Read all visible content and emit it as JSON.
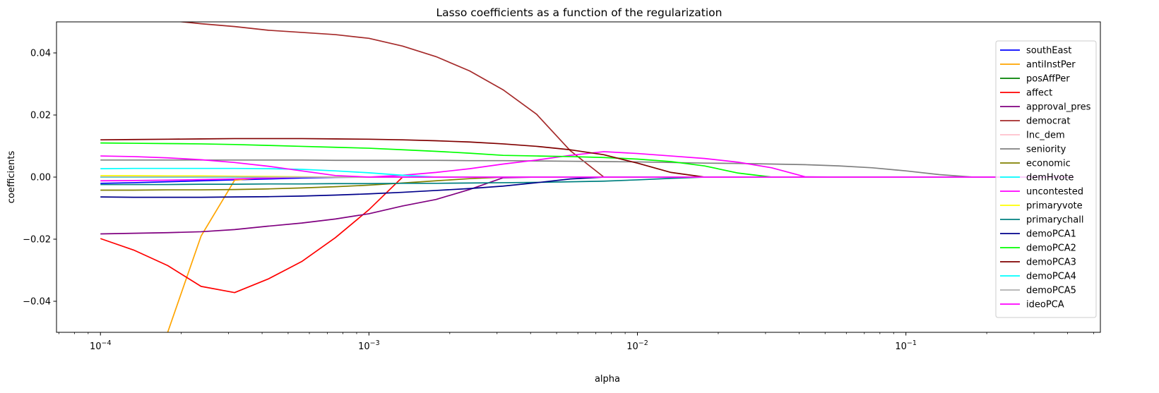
{
  "chart_data": {
    "type": "line",
    "title": "Lasso coefficients as a function of the regularization",
    "xlabel": "alpha",
    "ylabel": "coefficients",
    "xscale": "log",
    "xlim": [
      6.86e-05,
      0.53
    ],
    "ylim": [
      -0.05,
      0.05
    ],
    "xticks": [
      {
        "value": 0.0001,
        "base": "10",
        "exp": "−4"
      },
      {
        "value": 0.001,
        "base": "10",
        "exp": "−3"
      },
      {
        "value": 0.01,
        "base": "10",
        "exp": "−2"
      },
      {
        "value": 0.1,
        "base": "10",
        "exp": "−1"
      }
    ],
    "yticks": [
      {
        "value": -0.04,
        "label": "−0.04"
      },
      {
        "value": -0.02,
        "label": "−0.02"
      },
      {
        "value": 0.0,
        "label": "0.00"
      },
      {
        "value": 0.02,
        "label": "0.02"
      },
      {
        "value": 0.04,
        "label": "0.04"
      }
    ],
    "grid": false,
    "legend_position": "right",
    "x": [
      0.0001,
      0.000133,
      0.000178,
      0.000237,
      0.000316,
      0.000422,
      0.000562,
      0.00075,
      0.001,
      0.001334,
      0.001778,
      0.002371,
      0.003162,
      0.004217,
      0.005623,
      0.007499,
      0.01,
      0.013335,
      0.017783,
      0.023714,
      0.031623,
      0.04217,
      0.056234,
      0.074989,
      0.1,
      0.133352,
      0.177828,
      0.237137,
      0.316228,
      0.421697
    ],
    "series": [
      {
        "name": "southEast",
        "color": "#0000ff",
        "values": [
          -0.002,
          -0.0018,
          -0.0015,
          -0.0012,
          -0.0009,
          -0.0006,
          -0.0003,
          -0.0001,
          0,
          0,
          0,
          0,
          0,
          0,
          0,
          0,
          0,
          0,
          0,
          0,
          0,
          0,
          0,
          0,
          0,
          0,
          0,
          0,
          0,
          0
        ]
      },
      {
        "name": "antiInstPer",
        "color": "#ffa500",
        "values": [
          null,
          null,
          -0.05,
          -0.019,
          -0.001,
          0,
          0,
          0,
          0,
          0,
          0,
          0,
          0,
          0,
          0,
          0,
          0,
          0,
          0,
          0,
          0,
          0,
          0,
          0,
          0,
          0,
          0,
          0,
          0,
          0
        ]
      },
      {
        "name": "posAffPer",
        "color": "#008000",
        "values": [
          0,
          0,
          0,
          0,
          0,
          0,
          0,
          0,
          0,
          0,
          0,
          0,
          0,
          0,
          0,
          0,
          0,
          0,
          0,
          0,
          0,
          0,
          0,
          0,
          0,
          0,
          0,
          0,
          0,
          0
        ]
      },
      {
        "name": "affect",
        "color": "#ff0000",
        "values": [
          -0.0198,
          -0.0235,
          -0.0285,
          -0.0352,
          -0.0372,
          -0.0328,
          -0.0272,
          -0.0195,
          -0.0105,
          0,
          0,
          0,
          0,
          0,
          0,
          0,
          0,
          0,
          0,
          0,
          0,
          0,
          0,
          0,
          0,
          0,
          0,
          0,
          0,
          0
        ]
      },
      {
        "name": "approval_pres",
        "color": "#800080",
        "values": [
          -0.0183,
          -0.0181,
          -0.0179,
          -0.0176,
          -0.0169,
          -0.0158,
          -0.0148,
          -0.0135,
          -0.0118,
          -0.0093,
          -0.0072,
          -0.004,
          -0.0002,
          0,
          0,
          0,
          0,
          0,
          0,
          0,
          0,
          0,
          0,
          0,
          0,
          0,
          0,
          0,
          0,
          0
        ]
      },
      {
        "name": "democrat",
        "color": "#a52a2a",
        "values": [
          0.052,
          0.0515,
          0.0505,
          0.0494,
          0.0485,
          0.0473,
          0.0466,
          0.0459,
          0.0447,
          0.0422,
          0.0388,
          0.0342,
          0.0281,
          0.0202,
          0.0085,
          0,
          0,
          0,
          0,
          0,
          0,
          0,
          0,
          0,
          0,
          0,
          0,
          0,
          0,
          0
        ]
      },
      {
        "name": "Inc_dem",
        "color": "#ffc0cb",
        "values": [
          0,
          0,
          0,
          0,
          0,
          0,
          0,
          0,
          0,
          0,
          0,
          0,
          0,
          0,
          0,
          0,
          0,
          0,
          0,
          0,
          0,
          0,
          0,
          0,
          0,
          0,
          0,
          0,
          0,
          0
        ]
      },
      {
        "name": "seniority",
        "color": "#808080",
        "values": [
          0.0055,
          0.0055,
          0.0055,
          0.0055,
          0.0055,
          0.0055,
          0.0055,
          0.0054,
          0.0054,
          0.0054,
          0.0054,
          0.0053,
          0.0053,
          0.0052,
          0.0051,
          0.005,
          0.0049,
          0.0047,
          0.0045,
          0.0044,
          0.0042,
          0.004,
          0.0036,
          0.003,
          0.002,
          0.0008,
          0,
          0,
          0,
          0
        ]
      },
      {
        "name": "economic",
        "color": "#808000",
        "values": [
          -0.0042,
          -0.0042,
          -0.0041,
          -0.0041,
          -0.004,
          -0.0038,
          -0.0035,
          -0.0031,
          -0.0026,
          -0.0019,
          -0.0012,
          -0.0005,
          0,
          0,
          0,
          0,
          0,
          0,
          0,
          0,
          0,
          0,
          0,
          0,
          0,
          0,
          0,
          0,
          0,
          0
        ]
      },
      {
        "name": "demHvote",
        "color": "#00ffff",
        "values": [
          0,
          0,
          0,
          0,
          0,
          0,
          0,
          0,
          0,
          0,
          0,
          0,
          0,
          0,
          0,
          0,
          0,
          0,
          0,
          0,
          0,
          0,
          0,
          0,
          0,
          0,
          0,
          0,
          0,
          0
        ]
      },
      {
        "name": "uncontested",
        "color": "#ff00ff",
        "values": [
          -0.0012,
          -0.0011,
          -0.001,
          -0.0008,
          -0.0006,
          -0.0003,
          0,
          0,
          0,
          0.0006,
          0.0015,
          0.0027,
          0.0042,
          0.0055,
          0.007,
          0.0082,
          0.0076,
          0.0068,
          0.006,
          0.0048,
          0.003,
          0.0001,
          0,
          0,
          0,
          0,
          0,
          0,
          0,
          0
        ]
      },
      {
        "name": "primaryvote",
        "color": "#ffff00",
        "values": [
          0.0005,
          0.0005,
          0.0004,
          0.0004,
          0.0003,
          0.0002,
          0.0001,
          0,
          0,
          0,
          0,
          0,
          0,
          0,
          0,
          0,
          0,
          0,
          0,
          0,
          0,
          0,
          0,
          0,
          0,
          0,
          0,
          0,
          0,
          0
        ]
      },
      {
        "name": "primarychall",
        "color": "#008080",
        "values": [
          -0.0024,
          -0.0024,
          -0.0024,
          -0.0023,
          -0.0023,
          -0.0022,
          -0.0022,
          -0.0021,
          -0.0021,
          -0.002,
          -0.002,
          -0.0019,
          -0.0018,
          -0.0017,
          -0.0015,
          -0.0013,
          -0.0009,
          -0.0004,
          0,
          0,
          0,
          0,
          0,
          0,
          0,
          0,
          0,
          0,
          0,
          0
        ]
      },
      {
        "name": "demoPCA1",
        "color": "#00008b",
        "values": [
          -0.0064,
          -0.0065,
          -0.0065,
          -0.0065,
          -0.0064,
          -0.0063,
          -0.0061,
          -0.0058,
          -0.0054,
          -0.0049,
          -0.0043,
          -0.0037,
          -0.0029,
          -0.0018,
          -0.0006,
          0,
          0,
          0,
          0,
          0,
          0,
          0,
          0,
          0,
          0,
          0,
          0,
          0,
          0,
          0
        ]
      },
      {
        "name": "demoPCA2",
        "color": "#00ff00",
        "values": [
          0.011,
          0.0109,
          0.0108,
          0.0107,
          0.0105,
          0.0102,
          0.0099,
          0.0096,
          0.0093,
          0.0088,
          0.0083,
          0.0077,
          0.007,
          0.0068,
          0.0066,
          0.0063,
          0.0058,
          0.005,
          0.0036,
          0.0013,
          0,
          0,
          0,
          0,
          0,
          0,
          0,
          0,
          0,
          0
        ]
      },
      {
        "name": "demoPCA3",
        "color": "#800000",
        "values": [
          0.012,
          0.0121,
          0.0122,
          0.0123,
          0.0124,
          0.0124,
          0.0124,
          0.0123,
          0.0122,
          0.012,
          0.0117,
          0.0113,
          0.0107,
          0.0099,
          0.0088,
          0.0072,
          0.0045,
          0.0015,
          0,
          0,
          0,
          0,
          0,
          0,
          0,
          0,
          0,
          0,
          0,
          0
        ]
      },
      {
        "name": "demoPCA4",
        "color": "#00ffff",
        "values": [
          0.0027,
          0.0028,
          0.0028,
          0.0028,
          0.0028,
          0.0027,
          0.0025,
          0.002,
          0.0014,
          0.0006,
          0,
          0,
          0,
          0,
          0,
          0,
          0,
          0,
          0,
          0,
          0,
          0,
          0,
          0,
          0,
          0,
          0,
          0,
          0,
          0
        ]
      },
      {
        "name": "demoPCA5",
        "color": "#b0b0b0",
        "values": [
          0.0001,
          0.0001,
          0.0001,
          0.0001,
          0.0001,
          0,
          0,
          0,
          0,
          0,
          0,
          0,
          0,
          0,
          0,
          0,
          0,
          0,
          0,
          0,
          0,
          0,
          0,
          0,
          0,
          0,
          0,
          0,
          0,
          0
        ]
      },
      {
        "name": "ideoPCA",
        "color": "#ff00ff",
        "values": [
          0.0068,
          0.0066,
          0.0062,
          0.0056,
          0.0047,
          0.0035,
          0.002,
          0.0005,
          0,
          0,
          0,
          0,
          0,
          0,
          0,
          0,
          0,
          0,
          0,
          0,
          0,
          0,
          0,
          0,
          0,
          0,
          0,
          0,
          0,
          0
        ]
      }
    ]
  }
}
